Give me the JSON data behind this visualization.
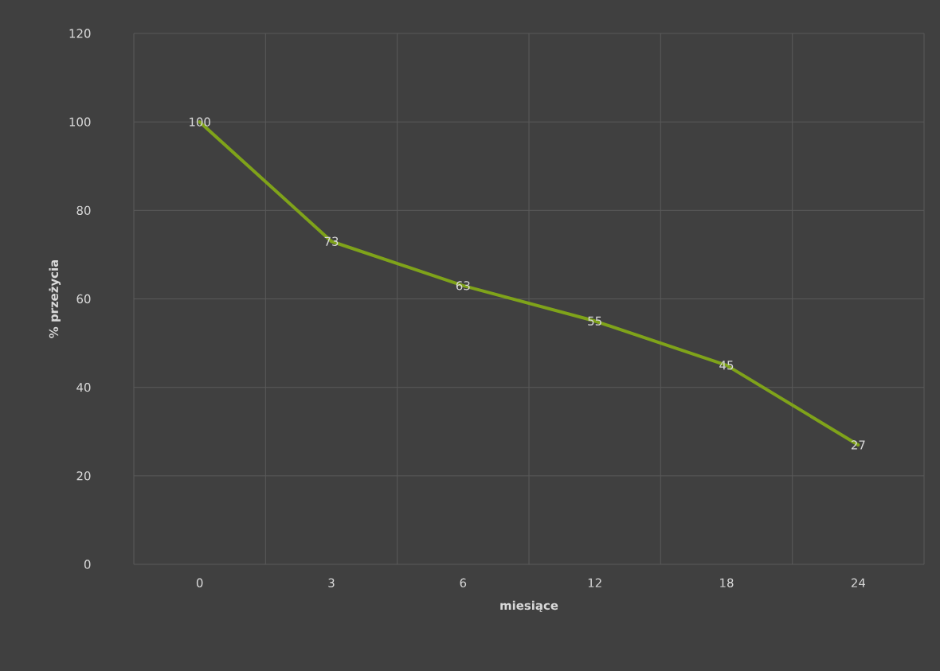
{
  "chart_data": {
    "type": "line",
    "xlabel": "miesiące",
    "ylabel": "% przeżycia",
    "categories": [
      "0",
      "3",
      "6",
      "12",
      "18",
      "24"
    ],
    "values": [
      100,
      73,
      63,
      55,
      45,
      27
    ],
    "color": "#7fa31a",
    "ylim": [
      0,
      120
    ],
    "yticks": [
      0,
      20,
      40,
      60,
      80,
      100,
      120
    ],
    "grid": true,
    "data_labels": true
  }
}
